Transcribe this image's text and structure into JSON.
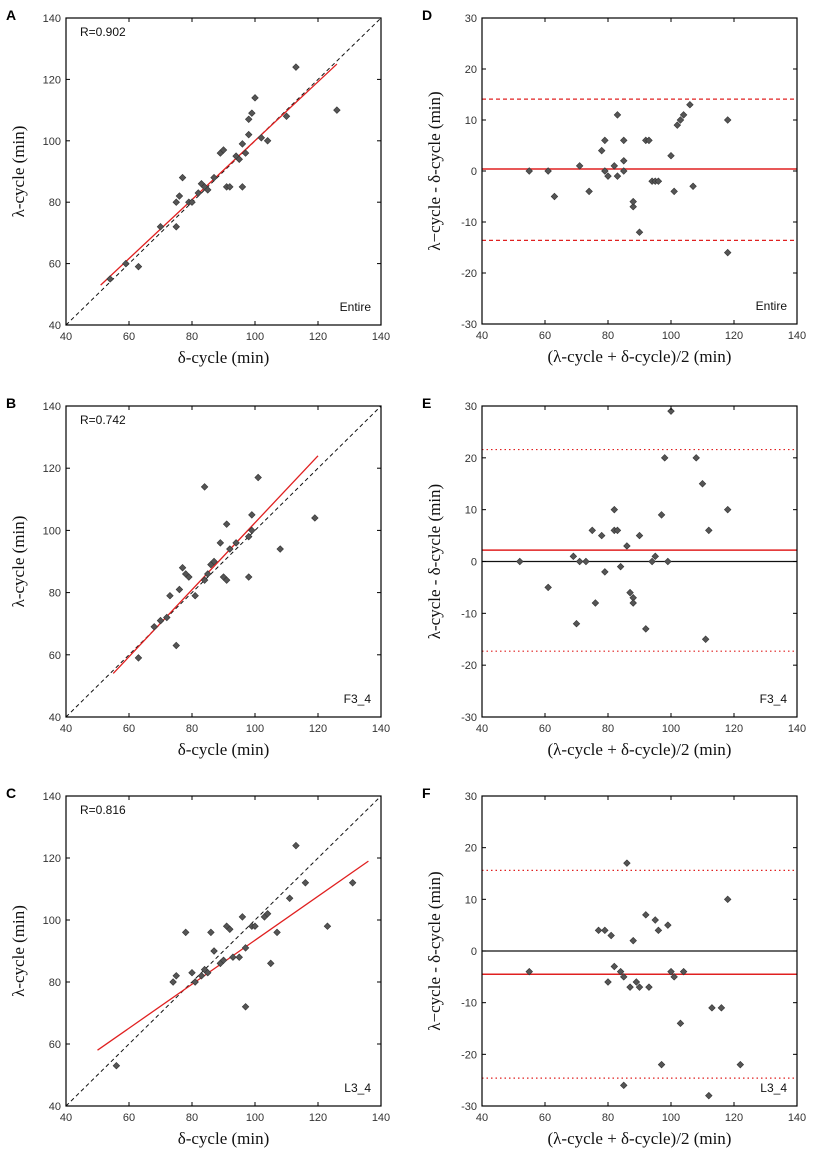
{
  "colors": {
    "fit": "#e02020",
    "points": "#555555",
    "identity": "#111111",
    "zero": "#111111"
  },
  "chart_data": [
    {
      "panel": "A",
      "type": "scatter",
      "annotation": "R=0.902",
      "dataset": "Entire",
      "xlabel": "δ-cycle (min)",
      "ylabel": "λ-cycle (min)",
      "xlim": [
        40,
        140
      ],
      "ylim": [
        40,
        140
      ],
      "xticks": [
        40,
        60,
        80,
        100,
        120,
        140
      ],
      "yticks": [
        40,
        60,
        80,
        100,
        120,
        140
      ],
      "identity_line": true,
      "fit_line": [
        [
          51,
          53
        ],
        [
          126,
          125
        ]
      ],
      "points": [
        [
          54,
          55
        ],
        [
          59,
          60
        ],
        [
          63,
          59
        ],
        [
          70,
          72
        ],
        [
          75,
          72
        ],
        [
          75,
          80
        ],
        [
          76,
          82
        ],
        [
          77,
          88
        ],
        [
          79,
          80
        ],
        [
          80,
          80
        ],
        [
          82,
          83
        ],
        [
          83,
          86
        ],
        [
          84,
          85
        ],
        [
          85,
          84
        ],
        [
          87,
          88
        ],
        [
          89,
          96
        ],
        [
          90,
          97
        ],
        [
          91,
          85
        ],
        [
          92,
          85
        ],
        [
          94,
          95
        ],
        [
          95,
          94
        ],
        [
          96,
          85
        ],
        [
          96,
          99
        ],
        [
          97,
          96
        ],
        [
          98,
          102
        ],
        [
          98,
          107
        ],
        [
          99,
          109
        ],
        [
          100,
          114
        ],
        [
          102,
          101
        ],
        [
          104,
          100
        ],
        [
          110,
          108
        ],
        [
          113,
          124
        ],
        [
          126,
          110
        ]
      ]
    },
    {
      "panel": "B",
      "type": "scatter",
      "annotation": "R=0.742",
      "dataset": "F3_4",
      "xlabel": "δ-cycle (min)",
      "ylabel": "λ-cycle (min)",
      "xlim": [
        40,
        140
      ],
      "ylim": [
        40,
        140
      ],
      "xticks": [
        40,
        60,
        80,
        100,
        120,
        140
      ],
      "yticks": [
        40,
        60,
        80,
        100,
        120,
        140
      ],
      "identity_line": true,
      "fit_line": [
        [
          55,
          54
        ],
        [
          120,
          124
        ]
      ],
      "points": [
        [
          63,
          59
        ],
        [
          68,
          69
        ],
        [
          70,
          71
        ],
        [
          72,
          72
        ],
        [
          73,
          79
        ],
        [
          75,
          63
        ],
        [
          76,
          81
        ],
        [
          77,
          88
        ],
        [
          78,
          86
        ],
        [
          79,
          85
        ],
        [
          81,
          79
        ],
        [
          84,
          84
        ],
        [
          84,
          114
        ],
        [
          85,
          86
        ],
        [
          86,
          89
        ],
        [
          87,
          90
        ],
        [
          89,
          96
        ],
        [
          90,
          85
        ],
        [
          91,
          84
        ],
        [
          91,
          102
        ],
        [
          92,
          94
        ],
        [
          94,
          96
        ],
        [
          98,
          85
        ],
        [
          98,
          98
        ],
        [
          99,
          100
        ],
        [
          99,
          105
        ],
        [
          101,
          117
        ],
        [
          108,
          94
        ],
        [
          119,
          104
        ]
      ]
    },
    {
      "panel": "C",
      "type": "scatter",
      "annotation": "R=0.816",
      "dataset": "L3_4",
      "xlabel": "δ-cycle (min)",
      "ylabel": "λ-cycle (min)",
      "xlim": [
        40,
        140
      ],
      "ylim": [
        40,
        140
      ],
      "xticks": [
        40,
        60,
        80,
        100,
        120,
        140
      ],
      "yticks": [
        40,
        60,
        80,
        100,
        120,
        140
      ],
      "identity_line": true,
      "fit_line": [
        [
          50,
          58
        ],
        [
          136,
          119
        ]
      ],
      "points": [
        [
          56,
          53
        ],
        [
          74,
          80
        ],
        [
          75,
          82
        ],
        [
          78,
          96
        ],
        [
          80,
          83
        ],
        [
          81,
          80
        ],
        [
          83,
          82
        ],
        [
          84,
          84
        ],
        [
          85,
          83
        ],
        [
          86,
          96
        ],
        [
          87,
          90
        ],
        [
          89,
          86
        ],
        [
          90,
          87
        ],
        [
          91,
          98
        ],
        [
          92,
          97
        ],
        [
          93,
          88
        ],
        [
          95,
          88
        ],
        [
          96,
          101
        ],
        [
          97,
          91
        ],
        [
          97,
          72
        ],
        [
          99,
          98
        ],
        [
          100,
          98
        ],
        [
          103,
          101
        ],
        [
          104,
          102
        ],
        [
          105,
          86
        ],
        [
          107,
          96
        ],
        [
          111,
          107
        ],
        [
          113,
          124
        ],
        [
          116,
          112
        ],
        [
          123,
          98
        ],
        [
          131,
          112
        ]
      ]
    },
    {
      "panel": "D",
      "type": "scatter",
      "dataset": "Entire",
      "xlabel": "(λ-cycle + δ-cycle)/2 (min)",
      "ylabel": "λ−cycle - δ-cycle (min)",
      "xlim": [
        40,
        140
      ],
      "ylim": [
        -30,
        30
      ],
      "xticks": [
        40,
        60,
        80,
        100,
        120,
        140
      ],
      "yticks": [
        -30,
        -20,
        -10,
        0,
        10,
        20,
        30
      ],
      "mean_line": 0.4,
      "mean_style": "solid",
      "limit_lines": [
        14.1,
        -13.6
      ],
      "limit_style": "dashed",
      "zero_line": false,
      "points": [
        [
          55,
          0
        ],
        [
          61,
          0
        ],
        [
          63,
          -5
        ],
        [
          71,
          1
        ],
        [
          74,
          -4
        ],
        [
          78,
          4
        ],
        [
          79,
          6
        ],
        [
          79,
          0
        ],
        [
          80,
          -1
        ],
        [
          82,
          1
        ],
        [
          83,
          -1
        ],
        [
          83,
          11
        ],
        [
          85,
          2
        ],
        [
          85,
          0
        ],
        [
          85,
          6
        ],
        [
          88,
          -7
        ],
        [
          88,
          -6
        ],
        [
          90,
          -12
        ],
        [
          92,
          6
        ],
        [
          93,
          6
        ],
        [
          94,
          -2
        ],
        [
          95,
          -2
        ],
        [
          96,
          -2
        ],
        [
          100,
          3
        ],
        [
          101,
          -4
        ],
        [
          102,
          9
        ],
        [
          103,
          10
        ],
        [
          104,
          11
        ],
        [
          106,
          13
        ],
        [
          107,
          -3
        ],
        [
          118,
          -16
        ],
        [
          118,
          10
        ]
      ]
    },
    {
      "panel": "E",
      "type": "scatter",
      "dataset": "F3_4",
      "xlabel": "(λ-cycle + δ-cycle)/2 (min)",
      "ylabel": "λ-cycle - δ-cycle (min)",
      "xlim": [
        40,
        140
      ],
      "ylim": [
        -30,
        30
      ],
      "xticks": [
        40,
        60,
        80,
        100,
        120,
        140
      ],
      "yticks": [
        -30,
        -20,
        -10,
        0,
        10,
        20,
        30
      ],
      "mean_line": 2.2,
      "mean_style": "solid",
      "limit_lines": [
        21.6,
        -17.3
      ],
      "limit_style": "dotted",
      "zero_line": true,
      "points": [
        [
          52,
          0
        ],
        [
          61,
          -5
        ],
        [
          69,
          1
        ],
        [
          70,
          -12
        ],
        [
          71,
          0
        ],
        [
          73,
          0
        ],
        [
          75,
          6
        ],
        [
          76,
          -8
        ],
        [
          78,
          5
        ],
        [
          79,
          -2
        ],
        [
          82,
          6
        ],
        [
          82,
          10
        ],
        [
          83,
          6
        ],
        [
          84,
          -1
        ],
        [
          86,
          3
        ],
        [
          87,
          -6
        ],
        [
          88,
          -7
        ],
        [
          88,
          -8
        ],
        [
          90,
          5
        ],
        [
          92,
          -13
        ],
        [
          94,
          0
        ],
        [
          95,
          1
        ],
        [
          97,
          9
        ],
        [
          98,
          20
        ],
        [
          99,
          0
        ],
        [
          100,
          29
        ],
        [
          108,
          20
        ],
        [
          110,
          15
        ],
        [
          111,
          -15
        ],
        [
          112,
          6
        ],
        [
          118,
          10
        ]
      ]
    },
    {
      "panel": "F",
      "type": "scatter",
      "dataset": "L3_4",
      "xlabel": "(λ-cycle + δ-cycle)/2 (min)",
      "ylabel": "λ−cycle - δ-cycle (min)",
      "xlim": [
        40,
        140
      ],
      "ylim": [
        -30,
        30
      ],
      "xticks": [
        40,
        60,
        80,
        100,
        120,
        140
      ],
      "yticks": [
        -30,
        -20,
        -10,
        0,
        10,
        20,
        30
      ],
      "mean_line": -4.5,
      "mean_style": "solid",
      "limit_lines": [
        15.6,
        -24.6
      ],
      "limit_style": "dotted",
      "zero_line": true,
      "points": [
        [
          55,
          -4
        ],
        [
          77,
          4
        ],
        [
          79,
          4
        ],
        [
          80,
          -6
        ],
        [
          81,
          3
        ],
        [
          82,
          -3
        ],
        [
          84,
          -4
        ],
        [
          85,
          -5
        ],
        [
          85,
          -26
        ],
        [
          86,
          17
        ],
        [
          87,
          -7
        ],
        [
          88,
          2
        ],
        [
          89,
          -6
        ],
        [
          90,
          -7
        ],
        [
          92,
          7
        ],
        [
          93,
          -7
        ],
        [
          95,
          6
        ],
        [
          96,
          4
        ],
        [
          97,
          -22
        ],
        [
          99,
          5
        ],
        [
          100,
          -4
        ],
        [
          101,
          -5
        ],
        [
          103,
          -14
        ],
        [
          104,
          -4
        ],
        [
          112,
          -28
        ],
        [
          113,
          -11
        ],
        [
          116,
          -11
        ],
        [
          118,
          10
        ],
        [
          122,
          -22
        ]
      ]
    }
  ]
}
